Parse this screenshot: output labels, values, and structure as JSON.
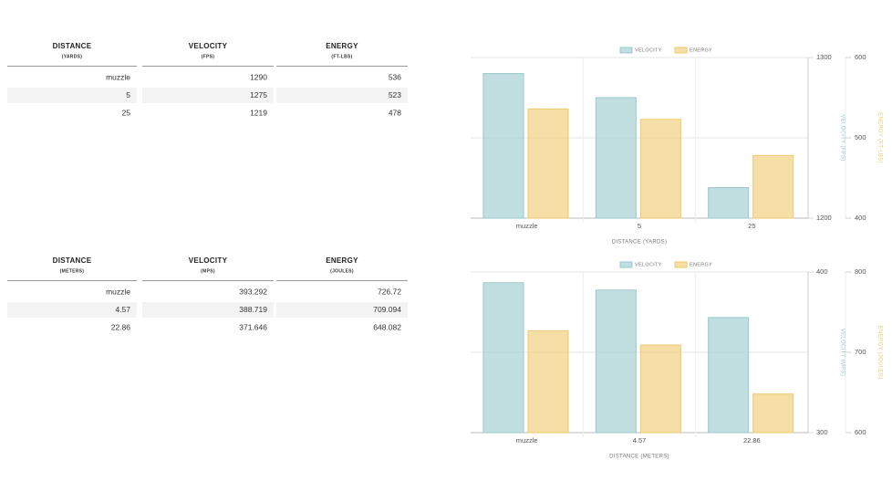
{
  "tables": [
    {
      "columns": [
        {
          "title": "DISTANCE",
          "unit": "(YARDS)"
        },
        {
          "title": "VELOCITY",
          "unit": "(FPS)"
        },
        {
          "title": "ENERGY",
          "unit": "(FT-LBS)"
        }
      ],
      "rows": [
        [
          "muzzle",
          1290,
          536
        ],
        [
          5,
          1275,
          523
        ],
        [
          25,
          1219,
          478
        ]
      ]
    },
    {
      "columns": [
        {
          "title": "DISTANCE",
          "unit": "(METERS)"
        },
        {
          "title": "VELOCITY",
          "unit": "(MPS)"
        },
        {
          "title": "ENERGY",
          "unit": "(JOULES)"
        }
      ],
      "rows": [
        [
          "muzzle",
          393.292,
          726.72
        ],
        [
          4.57,
          388.719,
          709.094
        ],
        [
          22.86,
          371.646,
          648.082
        ]
      ]
    }
  ],
  "chart_data": [
    {
      "type": "bar",
      "categories": [
        "muzzle",
        "5",
        "25"
      ],
      "xlabel": "DISTANCE (YARDS)",
      "ylabel": "VELOCITY (FPS)",
      "y2label": "ENERGY (FT-LBS)",
      "ylim": [
        1200,
        1300
      ],
      "yticks": [
        1200,
        1300
      ],
      "y2lim": [
        400,
        600
      ],
      "y2ticks": [
        400,
        500,
        600
      ],
      "legend": "top",
      "grid": true,
      "series": [
        {
          "name": "VELOCITY",
          "color": "#97c8cc",
          "values": [
            1290,
            1275,
            1219
          ]
        },
        {
          "name": "ENERGY",
          "color": "#efca6c",
          "axis": "y2",
          "values": [
            536,
            523,
            478
          ]
        }
      ]
    },
    {
      "type": "bar",
      "categories": [
        "muzzle",
        "4.57",
        "22.86"
      ],
      "xlabel": "DISTANCE (METERS)",
      "ylabel": "VELOCITY (MPS)",
      "y2label": "ENERGY (JOULES)",
      "ylim": [
        300,
        400
      ],
      "yticks": [
        300,
        400
      ],
      "y2lim": [
        600,
        800
      ],
      "y2ticks": [
        600,
        700,
        800
      ],
      "legend": "top",
      "grid": true,
      "series": [
        {
          "name": "VELOCITY",
          "color": "#97c8cc",
          "values": [
            393.292,
            388.719,
            371.646
          ]
        },
        {
          "name": "ENERGY",
          "color": "#efca6c",
          "axis": "y2",
          "values": [
            726.72,
            709.094,
            648.082
          ]
        }
      ]
    }
  ]
}
